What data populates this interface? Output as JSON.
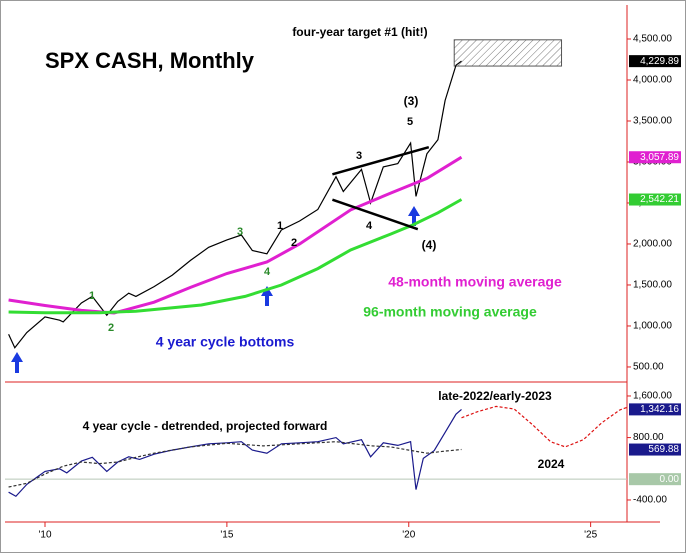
{
  "chart_data": [
    {
      "type": "line",
      "title": "SPX CASH, Monthly",
      "xlim": [
        2008.9,
        2026.0
      ],
      "ylim": [
        341,
        4878
      ],
      "yticks": [
        {
          "value": 4500,
          "label": "4,500.00"
        },
        {
          "value": 4000,
          "label": "4,000.00"
        },
        {
          "value": 3500,
          "label": "3,500.00"
        },
        {
          "value": 3000,
          "label": "3,000.00"
        },
        {
          "value": 2500,
          "label": "2,500.00"
        },
        {
          "value": 2000,
          "label": "2,000.00"
        },
        {
          "value": 1500,
          "label": "1,500.00"
        },
        {
          "value": 1000,
          "label": "1,000.00"
        },
        {
          "value": 500,
          "label": "500.00"
        }
      ],
      "series": [
        {
          "color": "#000000",
          "x": [
            2009.0,
            2009.17,
            2009.5,
            2010.0,
            2010.4,
            2010.5,
            2011.0,
            2011.3,
            2011.7,
            2012.0,
            2012.3,
            2012.5,
            2013.0,
            2013.5,
            2014.0,
            2014.5,
            2015.0,
            2015.4,
            2015.7,
            2016.1,
            2016.5,
            2017.0,
            2017.5,
            2018.0,
            2018.2,
            2018.7,
            2018.95,
            2019.3,
            2019.7,
            2020.05,
            2020.2,
            2020.5,
            2020.8,
            2021.0,
            2021.3,
            2021.45
          ],
          "values": [
            900,
            735,
            920,
            1110,
            1070,
            1050,
            1280,
            1360,
            1130,
            1300,
            1400,
            1360,
            1480,
            1620,
            1800,
            1960,
            2050,
            2110,
            1920,
            1880,
            2170,
            2280,
            2420,
            2820,
            2640,
            2910,
            2500,
            2940,
            2980,
            3230,
            2580,
            3100,
            3270,
            3750,
            4180,
            4229.89
          ]
        },
        {
          "color": "#e020d0",
          "x": [
            2009.0,
            2010.0,
            2011.0,
            2011.9,
            2013.0,
            2014.0,
            2015.0,
            2016.1,
            2017.0,
            2018.4,
            2019.5,
            2020.5,
            2021.45
          ],
          "values": [
            1317,
            1250,
            1190,
            1158,
            1290,
            1470,
            1640,
            1780,
            2000,
            2415,
            2620,
            2800,
            3057.89
          ]
        },
        {
          "color": "#33dd33",
          "x": [
            2009.0,
            2010.0,
            2011.5,
            2012.5,
            2014.3,
            2015.5,
            2016.5,
            2017.5,
            2018.4,
            2019.5,
            2020.1,
            2020.8,
            2021.45
          ],
          "values": [
            1170,
            1160,
            1160,
            1180,
            1256,
            1360,
            1500,
            1700,
            1927,
            2120,
            2230,
            2380,
            2542.21
          ]
        }
      ],
      "last_labels": [
        {
          "value": 4229.89,
          "label": "4,229.89",
          "color": "#000000"
        },
        {
          "value": 3057.89,
          "label": "3,057.89",
          "color": "#e020d0"
        },
        {
          "value": 2542.21,
          "label": "2,542.21",
          "color": "#33cc33"
        }
      ],
      "target_zone": {
        "x": [
          2021.25,
          2024.2
        ],
        "values": [
          4170,
          4490
        ]
      },
      "trendlines": [
        {
          "x": [
            2017.9,
            2020.55
          ],
          "values": [
            2850,
            3180
          ]
        },
        {
          "x": [
            2017.9,
            2020.25
          ],
          "values": [
            2540,
            2180
          ]
        }
      ],
      "annotations": [
        {
          "text": "SPX CASH, Monthly",
          "color": "#000000"
        },
        {
          "text": "four-year target #1 (hit!)",
          "color": "#000000"
        },
        {
          "text": "(3)",
          "color": "#000000"
        },
        {
          "text": "5",
          "color": "#000000"
        },
        {
          "text": "3",
          "color": "#000000"
        },
        {
          "text": "4",
          "color": "#000000"
        },
        {
          "text": "(4)",
          "color": "#000000"
        },
        {
          "text": "1",
          "color": "#000000"
        },
        {
          "text": "2",
          "color": "#000000"
        },
        {
          "text": "1",
          "color": "#2a8a2a"
        },
        {
          "text": "2",
          "color": "#2a8a2a"
        },
        {
          "text": "3",
          "color": "#2a8a2a"
        },
        {
          "text": "4",
          "color": "#2a8a2a"
        },
        {
          "text": "48-month moving average",
          "color": "#e020d0"
        },
        {
          "text": "96-month moving average",
          "color": "#33cc33"
        },
        {
          "text": "4 year cycle bottoms",
          "color": "#1a1ad0"
        }
      ]
    },
    {
      "type": "line",
      "xlim": [
        2008.9,
        2026.0
      ],
      "ylim": [
        -785,
        1811
      ],
      "xticks": [
        {
          "value": 2010,
          "label": "'10"
        },
        {
          "value": 2015,
          "label": "'15"
        },
        {
          "value": 2020,
          "label": "'20"
        },
        {
          "value": 2025,
          "label": "'25"
        }
      ],
      "yticks": [
        {
          "value": 1600,
          "label": "1,600.00"
        },
        {
          "value": 800,
          "label": "800.00"
        },
        {
          "value": -400,
          "label": "-400.00"
        }
      ],
      "zero_line": 0,
      "series": [
        {
          "color": "#1a1a8c",
          "x": [
            2009.0,
            2009.2,
            2009.5,
            2009.8,
            2010.0,
            2010.4,
            2010.6,
            2011.0,
            2011.3,
            2011.7,
            2012.0,
            2012.3,
            2012.6,
            2013.0,
            2013.5,
            2014.0,
            2014.5,
            2015.0,
            2015.4,
            2015.7,
            2016.1,
            2016.5,
            2017.0,
            2017.5,
            2018.0,
            2018.2,
            2018.7,
            2018.95,
            2019.3,
            2019.7,
            2020.05,
            2020.2,
            2020.4,
            2020.7,
            2021.0,
            2021.3,
            2021.45
          ],
          "values": [
            -250,
            -330,
            -100,
            50,
            150,
            200,
            120,
            350,
            420,
            150,
            330,
            430,
            380,
            480,
            560,
            620,
            680,
            700,
            720,
            560,
            500,
            680,
            700,
            720,
            800,
            680,
            760,
            430,
            700,
            650,
            720,
            -200,
            400,
            550,
            900,
            1250,
            1342.16
          ]
        },
        {
          "color": "#333333",
          "dash": true,
          "x": [
            2009.0,
            2009.5,
            2010.0,
            2010.5,
            2011.0,
            2011.5,
            2012.0,
            2012.5,
            2013.0,
            2014.0,
            2015.0,
            2016.0,
            2017.0,
            2018.0,
            2019.0,
            2019.5,
            2020.0,
            2020.5,
            2021.0,
            2021.45
          ],
          "values": [
            -150,
            -80,
            100,
            250,
            330,
            300,
            330,
            420,
            500,
            620,
            690,
            640,
            680,
            720,
            640,
            620,
            560,
            500,
            540,
            569.88
          ]
        },
        {
          "color": "#dd1111",
          "dash": true,
          "x": [
            2021.45,
            2021.9,
            2022.4,
            2022.9,
            2023.4,
            2023.9,
            2024.3,
            2024.8,
            2025.3,
            2025.8,
            2026.0
          ],
          "values": [
            1180,
            1300,
            1400,
            1350,
            1050,
            720,
            620,
            760,
            1080,
            1330,
            1380
          ]
        }
      ],
      "last_labels": [
        {
          "value": 1342.16,
          "label": "1,342.16",
          "color": "#1a1a8c"
        },
        {
          "value": 569.88,
          "label": "569.88",
          "color": "#1a1a8c"
        },
        {
          "value": 0,
          "label": "0.00",
          "color": "#a8c8a8"
        }
      ],
      "annotations": [
        {
          "text": "late-2022/early-2023",
          "color": "#000000"
        },
        {
          "text": "4 year cycle - detrended, projected forward",
          "color": "#000000"
        },
        {
          "text": "2024",
          "color": "#000000"
        }
      ]
    }
  ]
}
